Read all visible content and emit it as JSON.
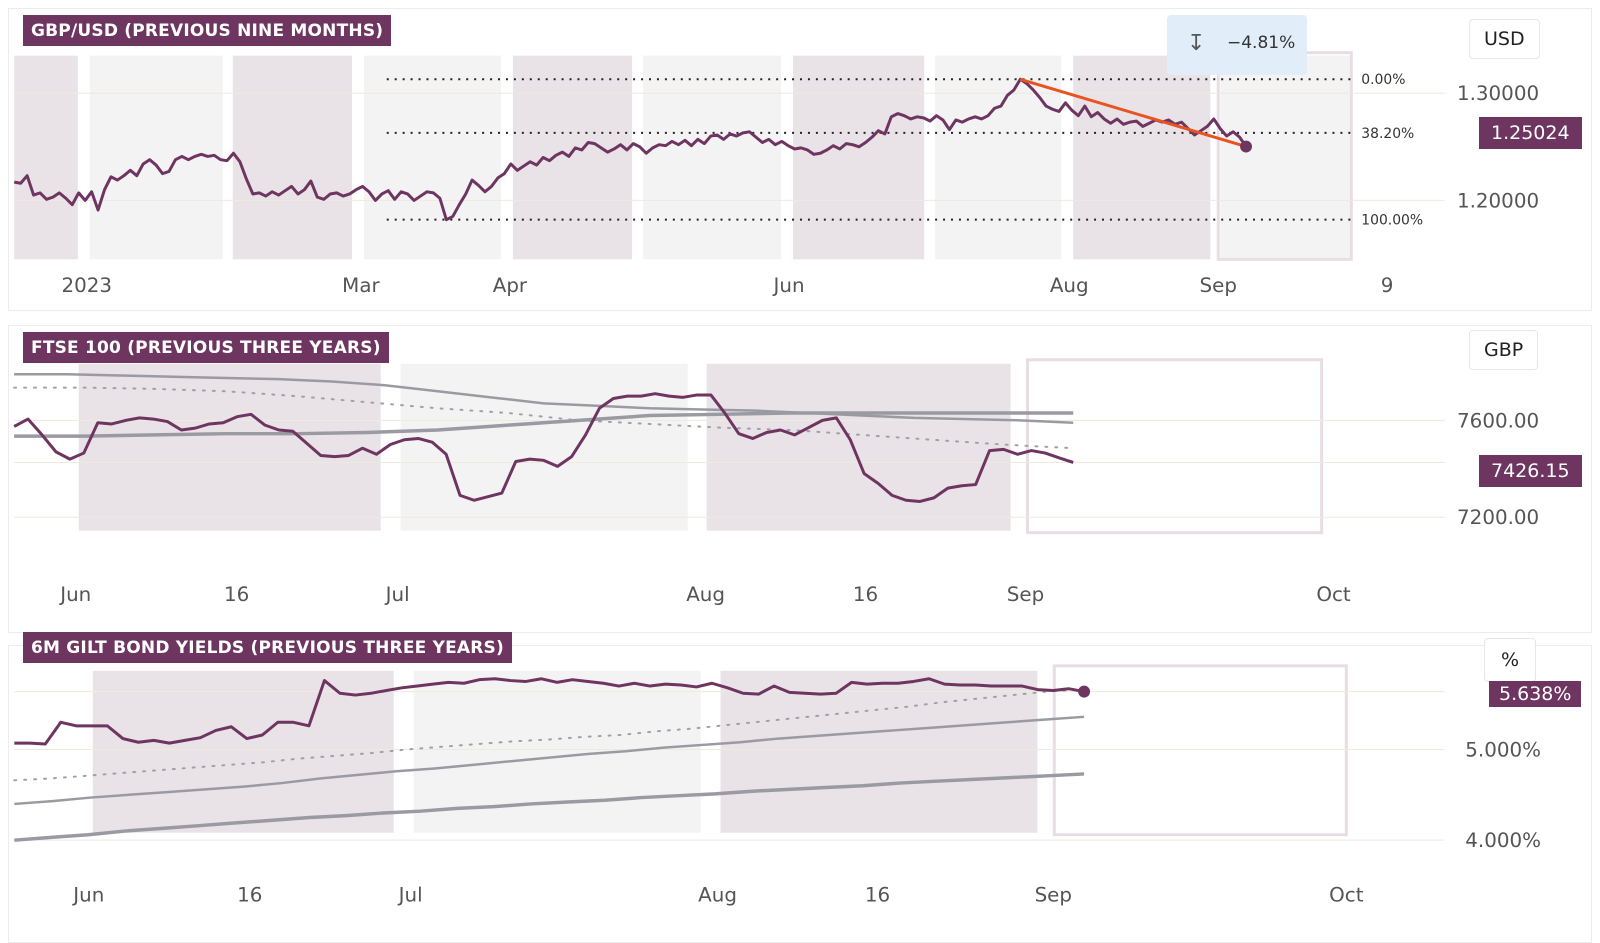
{
  "panels": [
    {
      "title": "GBP/USD (PREVIOUS NINE MONTHS)",
      "unit": "USD",
      "current_label": "1.25024",
      "measure_label": "−4.81%",
      "fib_labels": [
        "0.00%",
        "38.20%",
        "100.00%"
      ],
      "y_ticks": [
        "1.30000",
        "1.20000"
      ],
      "x_ticks": [
        "2023",
        "Mar",
        "Apr",
        "Jun",
        "Aug",
        "Sep",
        "9"
      ]
    },
    {
      "title": "FTSE 100 (PREVIOUS THREE YEARS)",
      "unit": "GBP",
      "current_label": "7426.15",
      "y_ticks": [
        "7600.00",
        "7200.00"
      ],
      "x_ticks": [
        "Jun",
        "16",
        "Jul",
        "Aug",
        "16",
        "Sep",
        "Oct"
      ]
    },
    {
      "title": "6M GILT BOND YIELDS (PREVIOUS THREE YEARS)",
      "unit": "%",
      "current_label": "5.638%",
      "y_ticks": [
        "5.000%",
        "4.000%"
      ],
      "x_ticks": [
        "Jun",
        "16",
        "Jul",
        "Aug",
        "16",
        "Sep",
        "Oct"
      ]
    }
  ],
  "colors": {
    "price_line": "#6e3561",
    "ma_line": "#9a9aa2",
    "trend_line": "#e8531f",
    "band_dark": "#e9e2e7",
    "band_light": "#f4f3f4",
    "label_bg": "#6e3561"
  },
  "chart_data": [
    {
      "type": "line",
      "title": "GBP/USD (PREVIOUS NINE MONTHS)",
      "ylabel": "USD",
      "ylim": [
        1.145,
        1.335
      ],
      "last_value": 1.25024,
      "fib_levels": {
        "0.00%": 1.313,
        "38.20%": 1.263,
        "100.00%": 1.182
      },
      "trend_change": "−4.81%",
      "series": [
        {
          "values": [
            1.217,
            1.216,
            1.223,
            1.205,
            1.207,
            1.201,
            1.203,
            1.207,
            1.202,
            1.196,
            1.207,
            1.2,
            1.208,
            1.191,
            1.21,
            1.222,
            1.219,
            1.223,
            1.228,
            1.223,
            1.234,
            1.238,
            1.233,
            1.225,
            1.227,
            1.238,
            1.241,
            1.238,
            1.241,
            1.243,
            1.241,
            1.242,
            1.238,
            1.237,
            1.244,
            1.236,
            1.22,
            1.206,
            1.207,
            1.204,
            1.208,
            1.205,
            1.209,
            1.213,
            1.206,
            1.21,
            1.218,
            1.203,
            1.201,
            1.206,
            1.207,
            1.204,
            1.206,
            1.21,
            1.213,
            1.208,
            1.2,
            1.206,
            1.209,
            1.201,
            1.208,
            1.206,
            1.2,
            1.204,
            1.208,
            1.207,
            1.202,
            1.182,
            1.185,
            1.196,
            1.206,
            1.219,
            1.214,
            1.208,
            1.213,
            1.221,
            1.225,
            1.234,
            1.228,
            1.232,
            1.236,
            1.233,
            1.24,
            1.237,
            1.242,
            1.245,
            1.241,
            1.249,
            1.247,
            1.254,
            1.253,
            1.249,
            1.245,
            1.248,
            1.252,
            1.247,
            1.253,
            1.25,
            1.244,
            1.249,
            1.252,
            1.251,
            1.255,
            1.252,
            1.256,
            1.251,
            1.257,
            1.253,
            1.26,
            1.261,
            1.257,
            1.262,
            1.26,
            1.263,
            1.264,
            1.259,
            1.254,
            1.257,
            1.252,
            1.255,
            1.251,
            1.248,
            1.249,
            1.247,
            1.243,
            1.244,
            1.247,
            1.251,
            1.248,
            1.253,
            1.252,
            1.25,
            1.254,
            1.259,
            1.265,
            1.262,
            1.278,
            1.281,
            1.279,
            1.276,
            1.278,
            1.277,
            1.274,
            1.279,
            1.275,
            1.266,
            1.275,
            1.273,
            1.276,
            1.278,
            1.276,
            1.279,
            1.286,
            1.288,
            1.298,
            1.303,
            1.313,
            1.309,
            1.303,
            1.296,
            1.288,
            1.285,
            1.283,
            1.291,
            1.284,
            1.279,
            1.288,
            1.278,
            1.282,
            1.276,
            1.272,
            1.276,
            1.271,
            1.273,
            1.274,
            1.269,
            1.272,
            1.275,
            1.273,
            1.275,
            1.271,
            1.273,
            1.267,
            1.261,
            1.265,
            1.269,
            1.276,
            1.267,
            1.26,
            1.264,
            1.259,
            1.25024
          ]
        }
      ]
    },
    {
      "type": "line",
      "title": "FTSE 100 (PREVIOUS THREE YEARS)",
      "ylabel": "GBP",
      "ylim": [
        7120,
        7850
      ],
      "last_value": 7426.15,
      "series": [
        {
          "values": [
            7575,
            7605,
            7540,
            7470,
            7440,
            7465,
            7590,
            7585,
            7600,
            7610,
            7605,
            7595,
            7560,
            7568,
            7585,
            7590,
            7615,
            7625,
            7580,
            7560,
            7555,
            7505,
            7455,
            7450,
            7455,
            7485,
            7460,
            7500,
            7520,
            7525,
            7510,
            7460,
            7290,
            7270,
            7285,
            7300,
            7430,
            7440,
            7435,
            7410,
            7450,
            7540,
            7650,
            7690,
            7700,
            7700,
            7710,
            7700,
            7695,
            7705,
            7705,
            7630,
            7545,
            7525,
            7550,
            7560,
            7540,
            7570,
            7600,
            7610,
            7520,
            7380,
            7340,
            7290,
            7270,
            7265,
            7280,
            7320,
            7330,
            7335,
            7475,
            7480,
            7460,
            7475,
            7465,
            7445,
            7426.15
          ]
        },
        {
          "values": [
            7790,
            7790,
            7785,
            7780,
            7775,
            7770,
            7760,
            7745,
            7720,
            7695,
            7670,
            7660,
            7650,
            7645,
            7640,
            7630,
            7620,
            7610,
            7605,
            7600,
            7590
          ]
        },
        {
          "values": [
            7535,
            7535,
            7540,
            7545,
            7545,
            7550,
            7560,
            7580,
            7600,
            7620,
            7625,
            7630,
            7630,
            7630,
            7630,
            7630
          ]
        },
        {
          "values": [
            7735,
            7735,
            7730,
            7720,
            7700,
            7675,
            7650,
            7630,
            7600,
            7585,
            7570,
            7560,
            7540,
            7520,
            7500,
            7485
          ]
        }
      ]
    },
    {
      "type": "line",
      "title": "6M GILT BOND YIELDS (PREVIOUS THREE YEARS)",
      "ylabel": "%",
      "ylim": [
        3.6,
        5.9
      ],
      "last_value": 5.638,
      "series": [
        {
          "values": [
            5.07,
            5.07,
            5.06,
            5.3,
            5.26,
            5.26,
            5.26,
            5.12,
            5.08,
            5.1,
            5.07,
            5.1,
            5.13,
            5.21,
            5.25,
            5.12,
            5.16,
            5.3,
            5.3,
            5.26,
            5.76,
            5.62,
            5.6,
            5.62,
            5.65,
            5.68,
            5.7,
            5.72,
            5.74,
            5.73,
            5.77,
            5.78,
            5.76,
            5.75,
            5.78,
            5.74,
            5.77,
            5.75,
            5.73,
            5.7,
            5.73,
            5.7,
            5.72,
            5.71,
            5.69,
            5.73,
            5.68,
            5.62,
            5.61,
            5.7,
            5.63,
            5.62,
            5.61,
            5.62,
            5.74,
            5.72,
            5.73,
            5.73,
            5.75,
            5.78,
            5.72,
            5.71,
            5.71,
            5.7,
            5.7,
            5.7,
            5.66,
            5.65,
            5.67,
            5.638
          ]
        },
        {
          "values": [
            4.66,
            4.68,
            4.71,
            4.74,
            4.77,
            4.8,
            4.83,
            4.86,
            4.9,
            4.93,
            4.96,
            5.0,
            5.03,
            5.06,
            5.09,
            5.11,
            5.14,
            5.16,
            5.2,
            5.23,
            5.27,
            5.31,
            5.35,
            5.39,
            5.43,
            5.47,
            5.52,
            5.56,
            5.6,
            5.64,
            5.66
          ]
        },
        {
          "values": [
            4.4,
            4.43,
            4.47,
            4.5,
            4.53,
            4.56,
            4.59,
            4.63,
            4.68,
            4.72,
            4.76,
            4.79,
            4.83,
            4.87,
            4.91,
            4.95,
            4.98,
            5.02,
            5.05,
            5.08,
            5.12,
            5.15,
            5.18,
            5.21,
            5.24,
            5.27,
            5.3,
            5.33,
            5.36
          ]
        },
        {
          "values": [
            4.0,
            4.03,
            4.06,
            4.1,
            4.13,
            4.16,
            4.19,
            4.22,
            4.25,
            4.27,
            4.3,
            4.32,
            4.35,
            4.37,
            4.4,
            4.42,
            4.44,
            4.47,
            4.49,
            4.51,
            4.54,
            4.56,
            4.58,
            4.6,
            4.63,
            4.65,
            4.67,
            4.69,
            4.71,
            4.73
          ]
        }
      ]
    }
  ]
}
